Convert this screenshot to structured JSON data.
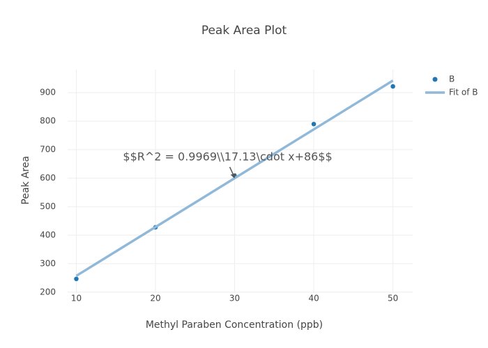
{
  "chart_data": {
    "type": "scatter",
    "title": "Peak Area Plot",
    "x_label": "Methyl Paraben Concentration (ppb)",
    "y_label": "Peak Area",
    "series": [
      {
        "name": "B",
        "color": "#1f77b4",
        "mode": "markers",
        "x": [
          10,
          20,
          30,
          40,
          50
        ],
        "values": [
          246.5,
          427.6,
          608.7,
          789.8,
          922
        ]
      },
      {
        "name": "Fit of B",
        "color": "#8fb8d9",
        "mode": "line",
        "x": [
          10,
          50
        ],
        "values": [
          257.3,
          942.5
        ]
      }
    ],
    "xlim": [
      8.9,
      52.5
    ],
    "xticks": [
      10,
      20,
      30,
      40,
      50
    ],
    "ylim": [
      197,
      981
    ],
    "yticks": [
      200,
      300,
      400,
      500,
      600,
      700,
      800,
      900
    ],
    "grid": true,
    "legend": "top-right",
    "annotation": {
      "text": "$$R^2 = 0.9969\\\\17.13\\cdot x+86$$",
      "x": 30,
      "y": 600
    }
  }
}
